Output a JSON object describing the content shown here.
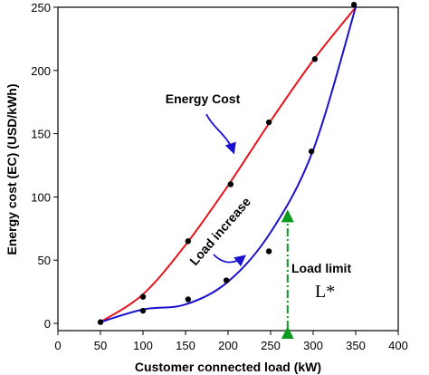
{
  "chart_data": {
    "type": "line",
    "title": "",
    "xlabel": "Customer connected load (kW)",
    "ylabel": "Energy cost (EC) (USD/kWh)",
    "xlim": [
      0,
      400
    ],
    "ylim": [
      0,
      250
    ],
    "x_ticks": [
      "0",
      "50",
      "100",
      "150",
      "200",
      "250",
      "300",
      "350",
      "400"
    ],
    "y_ticks": [
      "0",
      "50",
      "100",
      "150",
      "200",
      "250"
    ],
    "grid": false,
    "series": [
      {
        "color": "#e8141c",
        "x": [
          50,
          100,
          150,
          200,
          250,
          300,
          350
        ],
        "y": [
          1,
          23,
          62,
          109,
          160,
          208,
          250
        ]
      },
      {
        "color": "#1a10d0",
        "x": [
          50,
          100,
          150,
          200,
          250,
          300,
          350
        ],
        "y": [
          1,
          11,
          15,
          33,
          72,
          137,
          250
        ]
      }
    ],
    "points": {
      "color": "#000000",
      "x": [
        50,
        100,
        100,
        153,
        153,
        198,
        203,
        248,
        248,
        298,
        302,
        348
      ],
      "y": [
        1,
        21,
        10,
        19,
        65,
        34,
        110,
        57,
        159,
        136,
        209,
        252
      ]
    },
    "annotations": {
      "energy_cost": "Energy Cost",
      "load_increase": "Load increase",
      "load_limit": "Load limit",
      "l_star": "L*"
    },
    "load_limit_x": 270,
    "load_limit_color": "#0a9a1e",
    "arrow_color": "#1a10d0"
  }
}
